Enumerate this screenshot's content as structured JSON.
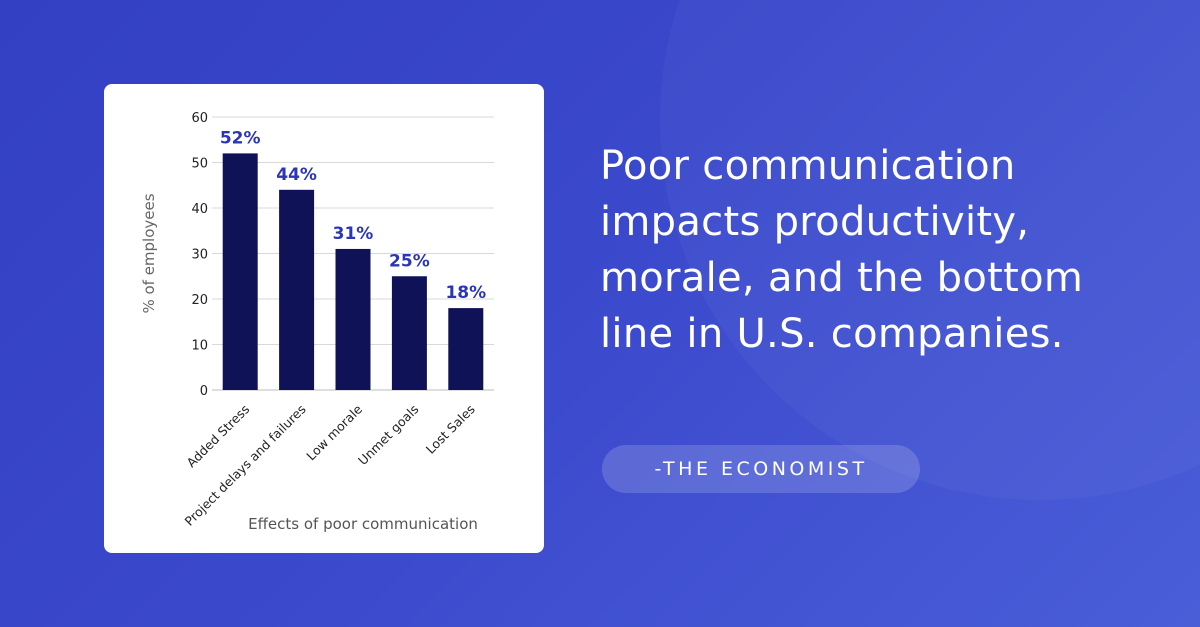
{
  "quote": {
    "text": "Poor communication impacts productivity, morale, and the bottom line in U.S. companies.",
    "source": "-THE ECONOMIST"
  },
  "colors": {
    "background": "#3a48cc",
    "bar": "#0f1257",
    "value_label": "#2b35b8",
    "card": "#ffffff"
  },
  "chart_data": {
    "type": "bar",
    "categories": [
      "Added Stress",
      "Project delays and failures",
      "Low morale",
      "Unmet goals",
      "Lost Sales"
    ],
    "values": [
      52,
      44,
      31,
      25,
      18
    ],
    "value_labels": [
      "52%",
      "44%",
      "31%",
      "25%",
      "18%"
    ],
    "title": "",
    "xlabel": "Effects of poor communication",
    "ylabel": "% of employees",
    "ylim": [
      0,
      60
    ],
    "yticks": [
      0,
      10,
      20,
      30,
      40,
      50,
      60
    ],
    "grid": true,
    "legend": "none"
  }
}
